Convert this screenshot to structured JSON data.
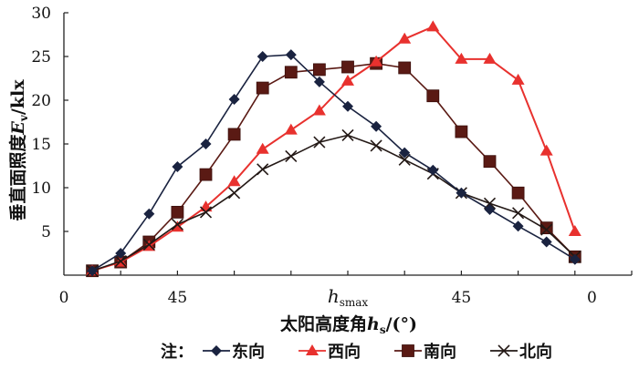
{
  "chart_data": {
    "type": "line",
    "ylabel": {
      "main": "垂直面照度",
      "var": "E",
      "sub": "v",
      "unit": "/klx"
    },
    "xlabel": {
      "main": "太阳高度角",
      "var": "h",
      "sub": "s",
      "unit": "/(°)"
    },
    "ylim": [
      0,
      30
    ],
    "xlim": [
      0,
      20
    ],
    "yticks": [
      5,
      10,
      15,
      20,
      25,
      30
    ],
    "xtick_marks": [
      2,
      4,
      6,
      8,
      10,
      12,
      14,
      16,
      18,
      20
    ],
    "xtick_labels": [
      {
        "x": 0,
        "text": "0"
      },
      {
        "x": 4,
        "text": "45"
      },
      {
        "x": 10,
        "text": "h",
        "sub": "smax"
      },
      {
        "x": 14,
        "text": "45"
      },
      {
        "x": 18.6,
        "text": "0"
      }
    ],
    "x": [
      1,
      2,
      3,
      4,
      5,
      6,
      7,
      8,
      9,
      10,
      11,
      12,
      13,
      14,
      15,
      16,
      17,
      18
    ],
    "grid": false,
    "legend_prefix": "注：",
    "legend_placement": "bottom",
    "series": [
      {
        "name": "东向",
        "marker": "diamond",
        "color": "#1a2340",
        "values": [
          0.5,
          2.5,
          7.0,
          12.4,
          15.0,
          20.1,
          25.0,
          25.2,
          22.1,
          19.3,
          17.0,
          14.0,
          12.0,
          9.4,
          7.5,
          5.6,
          3.8,
          1.8
        ]
      },
      {
        "name": "西向",
        "marker": "triangle",
        "color": "#e8312e",
        "values": [
          0.5,
          1.5,
          3.3,
          5.5,
          7.8,
          10.7,
          14.4,
          16.6,
          18.8,
          22.2,
          24.4,
          27.0,
          28.4,
          24.7,
          24.7,
          22.3,
          14.2,
          5.0
        ]
      },
      {
        "name": "南向",
        "marker": "square",
        "color": "#5a1a14",
        "values": [
          0.5,
          1.5,
          3.8,
          7.2,
          11.5,
          16.1,
          21.4,
          23.2,
          23.5,
          23.8,
          24.2,
          23.7,
          20.5,
          16.4,
          13.0,
          9.4,
          5.4,
          2.1
        ]
      },
      {
        "name": "北向",
        "marker": "x",
        "color": "#231815",
        "values": [
          0.5,
          1.6,
          3.5,
          5.8,
          7.2,
          9.4,
          12.1,
          13.6,
          15.2,
          16.0,
          14.8,
          13.2,
          11.6,
          9.4,
          8.2,
          7.1,
          5.2,
          2.1
        ]
      }
    ]
  }
}
